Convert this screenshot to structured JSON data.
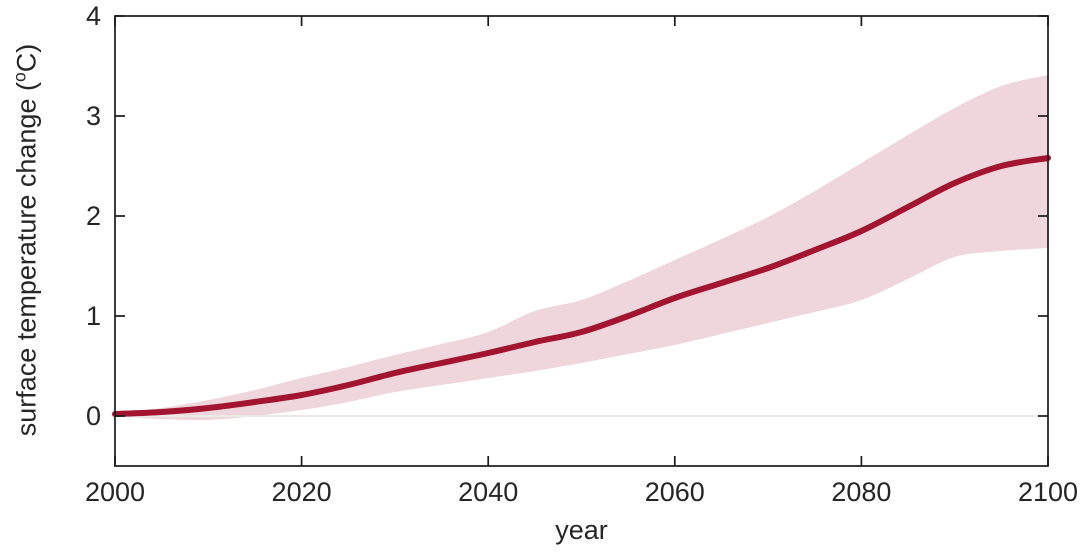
{
  "chart_data": {
    "type": "line",
    "title": "",
    "xlabel": "year",
    "ylabel_prefix": "surface temperature change (",
    "ylabel_sup": "o",
    "ylabel_suffix": "C)",
    "x": [
      2000,
      2005,
      2010,
      2015,
      2020,
      2025,
      2030,
      2035,
      2040,
      2045,
      2050,
      2055,
      2060,
      2065,
      2070,
      2075,
      2080,
      2085,
      2090,
      2095,
      2100
    ],
    "series": [
      {
        "name": "center",
        "role": "mean line",
        "values": [
          0.02,
          0.04,
          0.08,
          0.14,
          0.21,
          0.31,
          0.43,
          0.53,
          0.63,
          0.74,
          0.84,
          1.0,
          1.18,
          1.33,
          1.48,
          1.66,
          1.85,
          2.09,
          2.33,
          2.5,
          2.58
        ]
      },
      {
        "name": "upper",
        "role": "band upper edge",
        "values": [
          0.03,
          0.08,
          0.16,
          0.26,
          0.38,
          0.49,
          0.61,
          0.72,
          0.84,
          1.05,
          1.16,
          1.35,
          1.56,
          1.77,
          1.99,
          2.25,
          2.53,
          2.81,
          3.08,
          3.3,
          3.41
        ]
      },
      {
        "name": "lower",
        "role": "band lower edge",
        "values": [
          0.0,
          -0.03,
          -0.04,
          0.0,
          0.06,
          0.14,
          0.24,
          0.31,
          0.38,
          0.45,
          0.53,
          0.62,
          0.71,
          0.82,
          0.93,
          1.04,
          1.16,
          1.37,
          1.59,
          1.65,
          1.68
        ]
      }
    ],
    "xlim": [
      2000,
      2100
    ],
    "ylim": [
      -0.5,
      4
    ],
    "xticks": [
      2000,
      2020,
      2040,
      2060,
      2080,
      2100
    ],
    "yticks": [
      0,
      1,
      2,
      3,
      4
    ],
    "grid": false,
    "legend": null,
    "zero_reference_line": 0,
    "colors": {
      "line": "#A2142F",
      "band": "#EFD6DD",
      "zero_line": "#EAEAE6",
      "axis": "#1A1A1A",
      "text": "#262626"
    }
  }
}
